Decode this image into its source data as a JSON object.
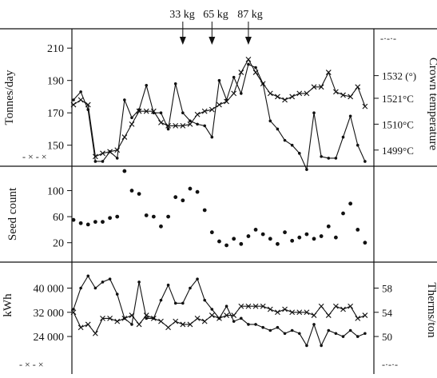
{
  "chart_data": [
    {
      "type": "line",
      "panel": "top",
      "annotations": [
        "33 kg",
        "65 kg",
        "87 kg"
      ],
      "annotation_x": [
        15,
        19,
        24
      ],
      "ylabel": "Tonnes/day",
      "y2label": "Crown temperature",
      "ylim": [
        138,
        218
      ],
      "yticks": [
        "210",
        "190",
        "170",
        "150"
      ],
      "ytick_values": [
        210,
        190,
        170,
        150
      ],
      "y2ticks": [
        "1532 (°)",
        "1521°C",
        "1510°C",
        "1499°C"
      ],
      "y2tick_values": [
        193,
        179,
        163,
        147
      ],
      "legend_left": "- × - ×",
      "legend_right": "-·-·-",
      "xlim": [
        0,
        41
      ],
      "series": [
        {
          "marker": "dot",
          "x": [
            0,
            1,
            2,
            3,
            4,
            5,
            6,
            7,
            8,
            9,
            10,
            11,
            12,
            13,
            14,
            15,
            16,
            17,
            18,
            19,
            20,
            21,
            22,
            23,
            24,
            25,
            26,
            27,
            28,
            29,
            30,
            31,
            32,
            33,
            34,
            35,
            36,
            37,
            38,
            39,
            40
          ],
          "y": [
            178,
            183,
            172,
            140,
            140,
            146,
            142,
            178,
            167,
            172,
            187,
            170,
            170,
            160,
            188,
            170,
            165,
            163,
            162,
            155,
            190,
            178,
            192,
            182,
            200,
            198,
            188,
            165,
            160,
            153,
            150,
            145,
            135,
            170,
            143,
            142,
            142,
            155,
            168,
            150,
            140
          ]
        },
        {
          "marker": "cross",
          "x": [
            0,
            1,
            2,
            3,
            4,
            5,
            6,
            7,
            8,
            9,
            10,
            11,
            12,
            13,
            14,
            15,
            16,
            17,
            18,
            19,
            20,
            21,
            22,
            23,
            24,
            25,
            26,
            27,
            28,
            29,
            30,
            31,
            32,
            33,
            34,
            35,
            36,
            37,
            38,
            39,
            40
          ],
          "y": [
            175,
            178,
            175,
            143,
            145,
            146,
            147,
            155,
            163,
            171,
            171,
            171,
            164,
            162,
            162,
            162,
            163,
            169,
            171,
            172,
            175,
            177,
            182,
            195,
            203,
            195,
            188,
            182,
            180,
            178,
            180,
            182,
            182,
            186,
            186,
            195,
            183,
            181,
            180,
            186,
            174
          ]
        }
      ]
    },
    {
      "type": "scatter",
      "panel": "middle",
      "ylabel": "Seed count",
      "ylim": [
        0,
        135
      ],
      "yticks": [
        "100",
        "60",
        "20"
      ],
      "ytick_values": [
        100,
        60,
        20
      ],
      "xlim": [
        0,
        41
      ],
      "series": [
        {
          "x": [
            0,
            1,
            2,
            3,
            4,
            5,
            6,
            7,
            8,
            9,
            10,
            11,
            12,
            13,
            14,
            15,
            16,
            17,
            18,
            19,
            20,
            21,
            22,
            23,
            24,
            25,
            26,
            27,
            28,
            29,
            30,
            31,
            32,
            33,
            34,
            35,
            36,
            37,
            38,
            39,
            40
          ],
          "y": [
            55,
            50,
            48,
            52,
            52,
            58,
            60,
            130,
            100,
            95,
            62,
            60,
            45,
            60,
            90,
            85,
            103,
            98,
            70,
            36,
            22,
            16,
            26,
            18,
            30,
            40,
            33,
            26,
            18,
            36,
            23,
            28,
            33,
            26,
            30,
            45,
            28,
            65,
            80,
            40,
            20
          ]
        }
      ]
    },
    {
      "type": "line",
      "panel": "bottom",
      "ylabel": "kWh",
      "y2label": "Therms/ton",
      "ylim": [
        19000,
        47000
      ],
      "yticks": [
        "40 000",
        "32 000",
        "24 000"
      ],
      "ytick_values": [
        40000,
        32000,
        24000
      ],
      "y2ticks": [
        "58",
        "54",
        "50"
      ],
      "y2tick_values": [
        40000,
        32000,
        24000
      ],
      "legend_left": "- × - ×",
      "legend_right": "-·-·-",
      "xlim": [
        0,
        41
      ],
      "series": [
        {
          "marker": "dot",
          "x": [
            0,
            1,
            2,
            3,
            4,
            5,
            6,
            7,
            8,
            9,
            10,
            11,
            12,
            13,
            14,
            15,
            16,
            17,
            18,
            19,
            20,
            21,
            22,
            23,
            24,
            25,
            26,
            27,
            28,
            29,
            30,
            31,
            32,
            33,
            34,
            35,
            36,
            37,
            38,
            39,
            40
          ],
          "y": [
            33000,
            40000,
            44000,
            40000,
            42000,
            43000,
            38000,
            30000,
            28000,
            42000,
            30000,
            30000,
            36000,
            41000,
            35000,
            35000,
            40000,
            43000,
            36000,
            33000,
            30000,
            34000,
            29000,
            30000,
            28000,
            28000,
            27000,
            26000,
            27000,
            25000,
            26000,
            25000,
            21000,
            28000,
            21000,
            26000,
            25000,
            24000,
            26000,
            24000,
            25000
          ]
        },
        {
          "marker": "cross",
          "x": [
            0,
            1,
            2,
            3,
            4,
            5,
            6,
            7,
            8,
            9,
            10,
            11,
            12,
            13,
            14,
            15,
            16,
            17,
            18,
            19,
            20,
            21,
            22,
            23,
            24,
            25,
            26,
            27,
            28,
            29,
            30,
            31,
            32,
            33,
            34,
            35,
            36,
            37,
            38,
            39,
            40
          ],
          "y": [
            32000,
            27000,
            28000,
            25000,
            30000,
            30000,
            29000,
            30000,
            31000,
            28000,
            31000,
            30000,
            29000,
            27000,
            29000,
            28000,
            28000,
            30000,
            29000,
            31000,
            30000,
            31000,
            31000,
            34000,
            34000,
            34000,
            34000,
            33000,
            32000,
            33000,
            32000,
            32000,
            32000,
            31000,
            34000,
            31000,
            34000,
            33000,
            34000,
            30000,
            31000
          ]
        }
      ]
    }
  ]
}
